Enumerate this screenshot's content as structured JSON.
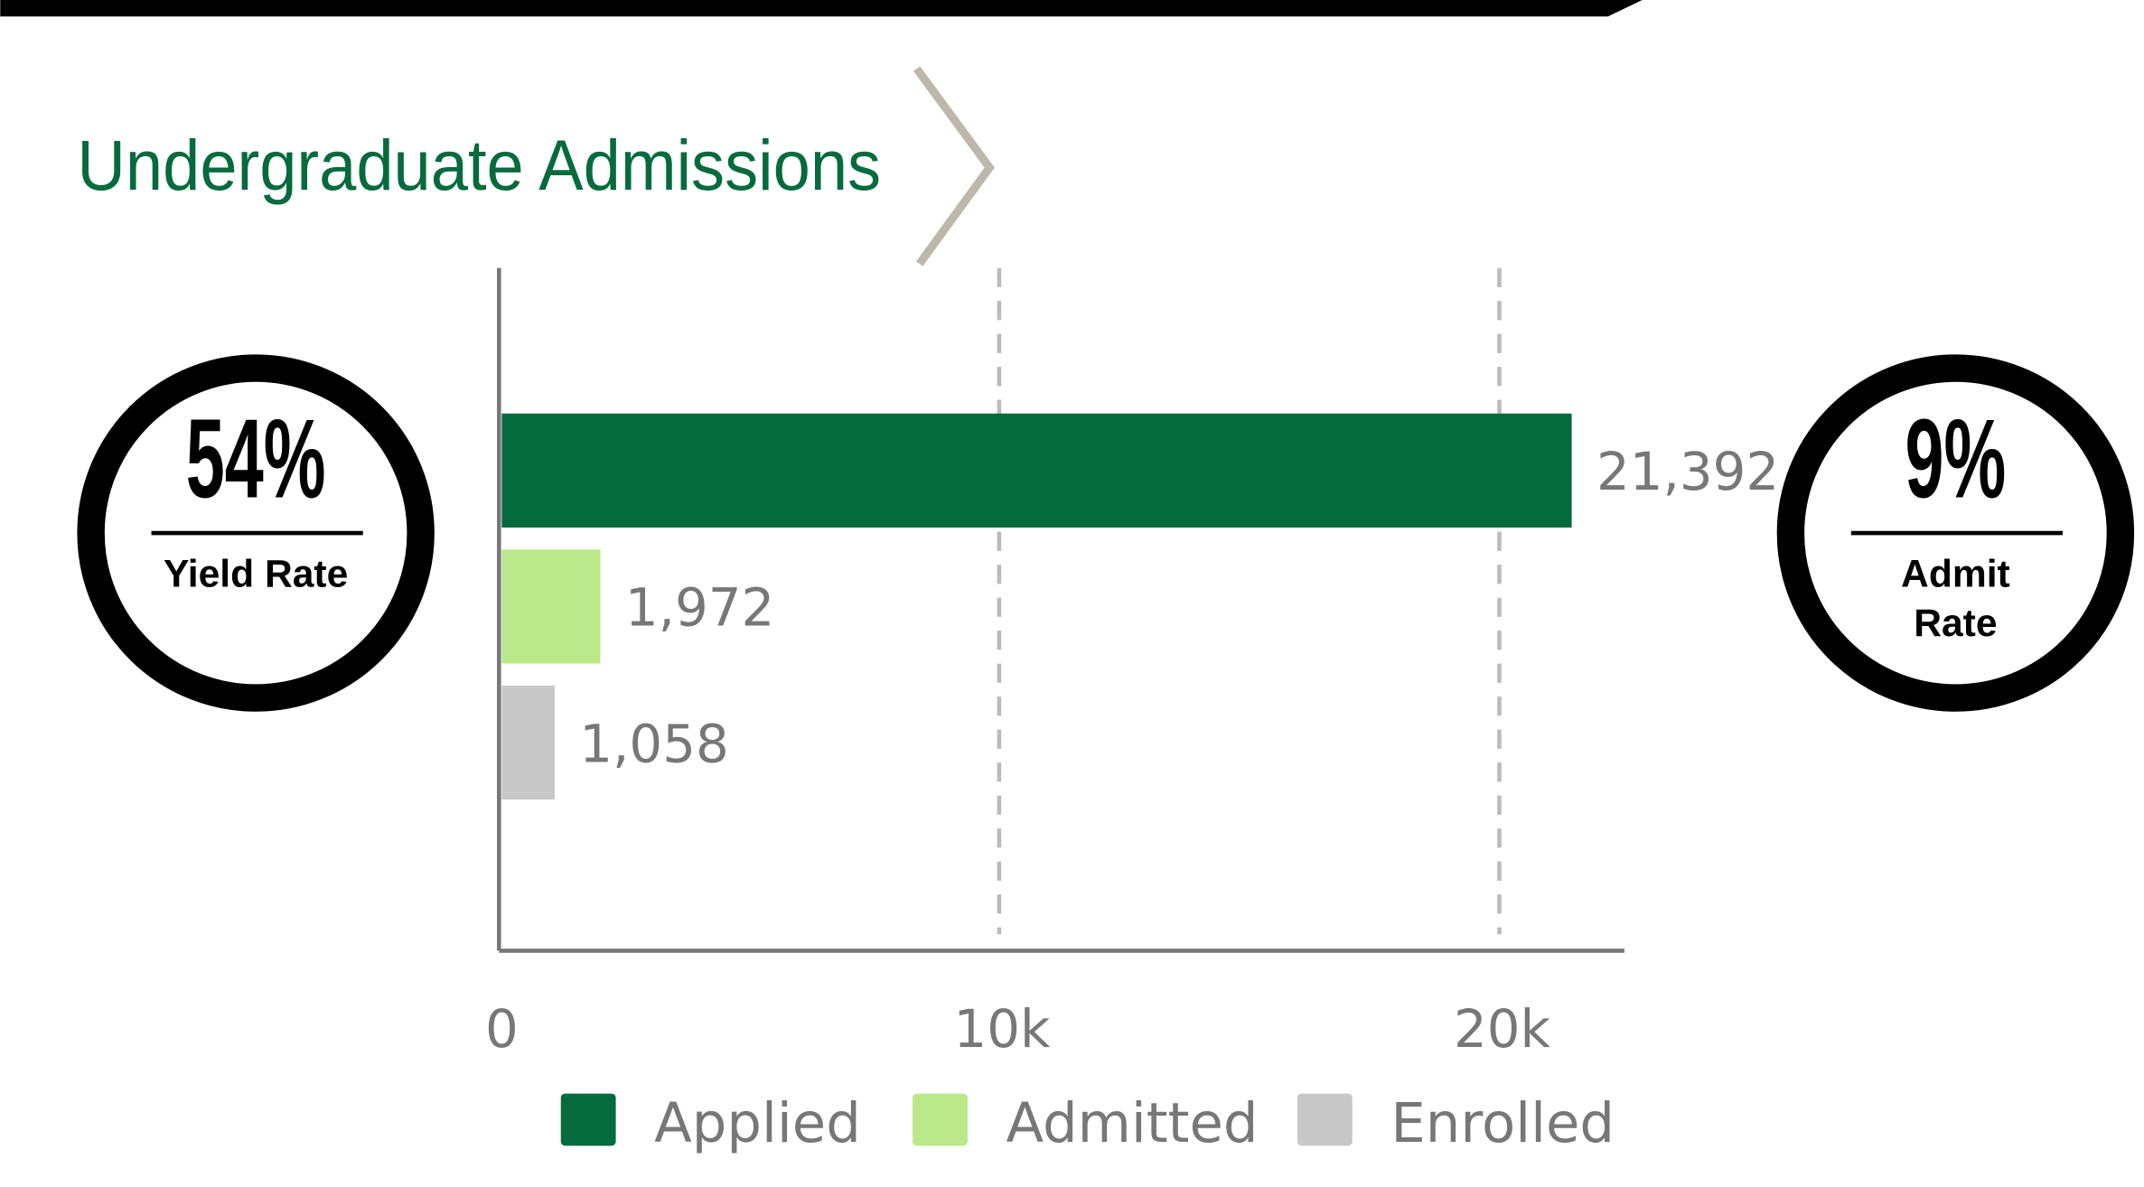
{
  "chart_data": {
    "type": "hbar",
    "title": "Undergraduate Admissions",
    "categories": [
      "Applied",
      "Admitted",
      "Enrolled"
    ],
    "values": [
      21392,
      1972,
      1058
    ],
    "value_labels": [
      "21,392",
      "1,972",
      "1,058"
    ],
    "colors": [
      "#056b3e",
      "#bbe88a",
      "#c8c8c8"
    ],
    "xlim": [
      0,
      22500
    ],
    "xticks": [
      0,
      {
        "value": 10000,
        "label": "10k"
      },
      {
        "value": 20000,
        "label": "20k"
      }
    ],
    "grid": true,
    "legend": "bottom",
    "stats": [
      {
        "value": "54%",
        "label": "Yield Rate"
      },
      {
        "value": "9%",
        "label": "Admit Rate"
      }
    ]
  }
}
